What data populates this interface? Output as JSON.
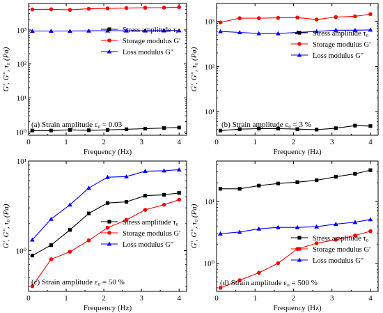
{
  "panels": [
    {
      "id": "a",
      "annotation": "(a) Strain amplitude ε₀ = 0.03",
      "xlabel": "Frequency (Hz)",
      "ylabel": "G′, G″, τ₀ (Pa)",
      "x_ticks": [
        0,
        1,
        2,
        3,
        4
      ],
      "y_scale": "log",
      "y_range": [
        0.8,
        6000
      ],
      "y_ticks": [
        {
          "v": 1,
          "label": "10⁰"
        },
        {
          "v": 10,
          "label": "10¹"
        },
        {
          "v": 100,
          "label": "10²"
        },
        {
          "v": 1000,
          "label": "10³"
        }
      ],
      "legend_position": "center-right",
      "legend": [
        "Stress amplitude τ₀",
        "Storage modulus G′",
        "Loss modulus G″"
      ]
    },
    {
      "id": "b",
      "annotation": "(b) Strain amplitude ε₀ = 3 %",
      "xlabel": "Frequency (Hz)",
      "ylabel": "G′, G″, τ₀ (Pa)",
      "x_ticks": [
        0,
        1,
        2,
        3,
        4
      ],
      "y_scale": "log",
      "y_range": [
        3,
        2500
      ],
      "y_ticks": [
        {
          "v": 10,
          "label": "10¹"
        },
        {
          "v": 100,
          "label": "10²"
        },
        {
          "v": 1000,
          "label": "10³"
        }
      ],
      "legend_position": "top-right",
      "legend": [
        "Stress amplitude τ₀",
        "Storage modulus G′",
        "Loss modulus G″"
      ]
    },
    {
      "id": "c",
      "annotation": "(c) Strain amplitude ε₀ = 50 %",
      "xlabel": "Frequency (Hz)",
      "ylabel": "G′, G″, τ₀ (Pa)",
      "x_ticks": [
        0,
        1,
        2,
        3,
        4
      ],
      "y_scale": "log",
      "y_range": [
        0.35,
        10
      ],
      "y_ticks": [
        {
          "v": 1,
          "label": "10⁰"
        },
        {
          "v": 10,
          "label": "10¹"
        }
      ],
      "legend_position": "bottom-right",
      "legend": [
        "Stress amplitude τ₀",
        "Storage modulus G′",
        "Loss modulus G″"
      ]
    },
    {
      "id": "d",
      "annotation": "(d) Strain amplitude ε₀ = 500 %",
      "xlabel": "Frequency (Hz)",
      "ylabel": "G′, G″, τ₀ (Pa)",
      "x_ticks": [
        0,
        1,
        2,
        3,
        4
      ],
      "y_scale": "log",
      "y_range": [
        0.35,
        45
      ],
      "y_ticks": [
        {
          "v": 1,
          "label": "10⁰"
        },
        {
          "v": 10,
          "label": "10¹"
        }
      ],
      "legend_position": "bottom-right",
      "legend": [
        "Stress amplitude τ₀",
        "Storage modulus G′",
        "Loss modulus G″"
      ]
    }
  ],
  "series_style": [
    {
      "color": "#000000",
      "marker": "square"
    },
    {
      "color": "#ff0000",
      "marker": "circle"
    },
    {
      "color": "#0000ff",
      "marker": "triangle"
    }
  ],
  "chart_data": [
    {
      "type": "line",
      "x": [
        0.1,
        0.6,
        1.1,
        1.6,
        2.1,
        2.6,
        3.1,
        3.6,
        4.0
      ],
      "series": [
        {
          "name": "Stress amplitude τ₀",
          "values": [
            1.1,
            1.1,
            1.15,
            1.12,
            1.15,
            1.2,
            1.25,
            1.3,
            1.35
          ]
        },
        {
          "name": "Storage modulus G′",
          "values": [
            4000,
            4050,
            3900,
            4200,
            4300,
            4400,
            4500,
            4550,
            4700
          ]
        },
        {
          "name": "Loss modulus G″",
          "values": [
            930,
            930,
            930,
            945,
            950,
            950,
            950,
            955,
            960
          ]
        }
      ],
      "xlim": [
        0,
        4.2
      ],
      "ylim": [
        0.8,
        6000
      ]
    },
    {
      "type": "line",
      "x": [
        0.1,
        0.6,
        1.1,
        1.6,
        2.1,
        2.6,
        3.1,
        3.6,
        4.0
      ],
      "series": [
        {
          "name": "Stress amplitude τ₀",
          "values": [
            3.8,
            4.1,
            4.2,
            4.2,
            4.1,
            4.0,
            4.3,
            4.9,
            4.8
          ]
        },
        {
          "name": "Storage modulus G′",
          "values": [
            950,
            1180,
            1180,
            1200,
            1220,
            1100,
            1250,
            1300,
            1450
          ]
        },
        {
          "name": "Loss modulus G″",
          "values": [
            600,
            570,
            540,
            540,
            570,
            600,
            640,
            640,
            650
          ]
        }
      ],
      "xlim": [
        0,
        4.2
      ],
      "ylim": [
        3,
        2500
      ]
    },
    {
      "type": "line",
      "x": [
        0.1,
        0.6,
        1.1,
        1.6,
        2.1,
        2.6,
        3.1,
        3.6,
        4.0
      ],
      "series": [
        {
          "name": "Stress amplitude τ₀",
          "values": [
            0.88,
            1.15,
            1.7,
            2.6,
            3.4,
            3.5,
            4.1,
            4.2,
            4.4
          ]
        },
        {
          "name": "Storage modulus G′",
          "values": [
            0.4,
            0.8,
            0.97,
            1.3,
            1.8,
            2.2,
            2.85,
            3.25,
            3.7
          ]
        },
        {
          "name": "Loss modulus G″",
          "values": [
            1.32,
            2.25,
            3.25,
            5.0,
            6.6,
            6.7,
            7.7,
            7.8,
            8.0
          ]
        }
      ],
      "xlim": [
        0,
        4.2
      ],
      "ylim": [
        0.35,
        10
      ]
    },
    {
      "type": "line",
      "x": [
        0.1,
        0.6,
        1.1,
        1.6,
        2.1,
        2.6,
        3.1,
        3.6,
        4.0
      ],
      "series": [
        {
          "name": "Stress amplitude τ₀",
          "values": [
            16,
            16,
            18,
            19.5,
            20.5,
            22,
            25,
            28,
            32
          ]
        },
        {
          "name": "Storage modulus G′",
          "values": [
            0.4,
            0.53,
            0.7,
            1.0,
            1.7,
            2.1,
            2.4,
            2.8,
            3.3
          ]
        },
        {
          "name": "Loss modulus G″",
          "values": [
            3.0,
            3.2,
            3.6,
            3.8,
            3.8,
            3.9,
            4.3,
            4.6,
            5.1
          ]
        }
      ],
      "xlim": [
        0,
        4.2
      ],
      "ylim": [
        0.35,
        45
      ]
    }
  ]
}
